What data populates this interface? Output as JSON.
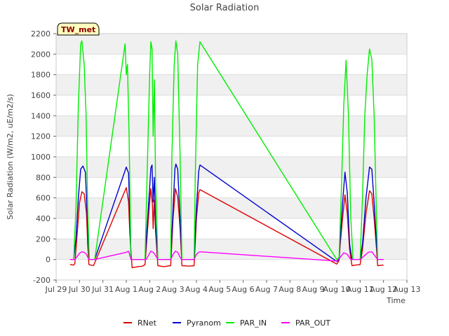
{
  "chart_data": {
    "type": "line",
    "title": "Solar Radiation",
    "xlabel": "Time",
    "ylabel": "Solar Radiation (W/m2, uE/m2/s)",
    "station_label": "TW_met",
    "xlim": [
      0,
      15
    ],
    "ylim": [
      -200,
      2200
    ],
    "y_ticks": [
      -200,
      0,
      200,
      400,
      600,
      800,
      1000,
      1200,
      1400,
      1600,
      1800,
      2000,
      2200
    ],
    "x_ticks": [
      {
        "x": 0,
        "label": "Jul 29"
      },
      {
        "x": 1,
        "label": "Jul 30"
      },
      {
        "x": 2,
        "label": "Jul 31"
      },
      {
        "x": 3,
        "label": "Aug 1"
      },
      {
        "x": 4,
        "label": "Aug 2"
      },
      {
        "x": 5,
        "label": "Aug 3"
      },
      {
        "x": 6,
        "label": "Aug 4"
      },
      {
        "x": 7,
        "label": "Aug 5"
      },
      {
        "x": 8,
        "label": "Aug 6"
      },
      {
        "x": 9,
        "label": "Aug 7"
      },
      {
        "x": 10,
        "label": "Aug 8"
      },
      {
        "x": 11,
        "label": "Aug 9"
      },
      {
        "x": 12,
        "label": "Aug 10"
      },
      {
        "x": 13,
        "label": "Aug 11"
      },
      {
        "x": 14,
        "label": "Aug 12"
      },
      {
        "x": 15,
        "label": "Aug 13"
      }
    ],
    "grid": "horizontal bands",
    "legend_position": "bottom",
    "series": [
      {
        "name": "RNet",
        "color": "#dd0000",
        "points": [
          [
            0.6,
            -50
          ],
          [
            0.75,
            -55
          ],
          [
            0.8,
            -40
          ],
          [
            0.9,
            250
          ],
          [
            1.0,
            550
          ],
          [
            1.1,
            660
          ],
          [
            1.2,
            640
          ],
          [
            1.3,
            450
          ],
          [
            1.35,
            150
          ],
          [
            1.4,
            -50
          ],
          [
            1.6,
            -60
          ],
          [
            3.0,
            700
          ],
          [
            3.1,
            560
          ],
          [
            3.15,
            260
          ],
          [
            3.25,
            -80
          ],
          [
            3.5,
            -70
          ],
          [
            3.7,
            -65
          ],
          [
            3.8,
            -50
          ],
          [
            3.9,
            260
          ],
          [
            4.0,
            560
          ],
          [
            4.05,
            690
          ],
          [
            4.12,
            540
          ],
          [
            4.15,
            300
          ],
          [
            4.2,
            580
          ],
          [
            4.25,
            280
          ],
          [
            4.35,
            -60
          ],
          [
            4.6,
            -70
          ],
          [
            4.9,
            -60
          ],
          [
            5.0,
            400
          ],
          [
            5.1,
            690
          ],
          [
            5.2,
            610
          ],
          [
            5.3,
            300
          ],
          [
            5.38,
            -60
          ],
          [
            5.7,
            -65
          ],
          [
            5.9,
            -60
          ],
          [
            6.0,
            400
          ],
          [
            6.1,
            650
          ],
          [
            6.15,
            680
          ],
          [
            12.0,
            -45
          ],
          [
            12.1,
            -10
          ],
          [
            12.15,
            150
          ],
          [
            12.25,
            400
          ],
          [
            12.35,
            630
          ],
          [
            12.45,
            450
          ],
          [
            12.55,
            100
          ],
          [
            12.65,
            -60
          ],
          [
            12.8,
            -55
          ],
          [
            13.0,
            -50
          ],
          [
            13.1,
            100
          ],
          [
            13.25,
            450
          ],
          [
            13.4,
            670
          ],
          [
            13.5,
            640
          ],
          [
            13.6,
            400
          ],
          [
            13.7,
            100
          ],
          [
            13.75,
            -60
          ],
          [
            14.0,
            -55
          ]
        ]
      },
      {
        "name": "Pyranom",
        "color": "#0000cc",
        "points": [
          [
            0.6,
            0
          ],
          [
            0.75,
            0
          ],
          [
            0.85,
            200
          ],
          [
            0.95,
            600
          ],
          [
            1.05,
            880
          ],
          [
            1.15,
            910
          ],
          [
            1.25,
            850
          ],
          [
            1.3,
            600
          ],
          [
            1.37,
            200
          ],
          [
            1.42,
            0
          ],
          [
            1.65,
            0
          ],
          [
            3.0,
            900
          ],
          [
            3.1,
            840
          ],
          [
            3.15,
            400
          ],
          [
            3.2,
            0
          ],
          [
            3.6,
            0
          ],
          [
            3.8,
            0
          ],
          [
            3.9,
            350
          ],
          [
            4.0,
            700
          ],
          [
            4.05,
            890
          ],
          [
            4.1,
            920
          ],
          [
            4.15,
            560
          ],
          [
            4.2,
            800
          ],
          [
            4.25,
            350
          ],
          [
            4.35,
            0
          ],
          [
            4.9,
            0
          ],
          [
            5.0,
            500
          ],
          [
            5.08,
            880
          ],
          [
            5.12,
            930
          ],
          [
            5.2,
            880
          ],
          [
            5.3,
            400
          ],
          [
            5.38,
            0
          ],
          [
            5.9,
            0
          ],
          [
            6.0,
            500
          ],
          [
            6.1,
            860
          ],
          [
            6.15,
            920
          ],
          [
            12.0,
            -20
          ],
          [
            12.1,
            0
          ],
          [
            12.15,
            200
          ],
          [
            12.25,
            550
          ],
          [
            12.35,
            850
          ],
          [
            12.45,
            650
          ],
          [
            12.55,
            150
          ],
          [
            12.65,
            0
          ],
          [
            13.0,
            0
          ],
          [
            13.1,
            150
          ],
          [
            13.25,
            600
          ],
          [
            13.4,
            900
          ],
          [
            13.5,
            880
          ],
          [
            13.6,
            550
          ],
          [
            13.7,
            150
          ],
          [
            13.75,
            0
          ],
          [
            14.0,
            0
          ]
        ]
      },
      {
        "name": "PAR_IN",
        "color": "#00ee00",
        "points": [
          [
            0.75,
            0
          ],
          [
            0.85,
            500
          ],
          [
            0.95,
            1500
          ],
          [
            1.05,
            2100
          ],
          [
            1.1,
            2130
          ],
          [
            1.2,
            1900
          ],
          [
            1.28,
            1400
          ],
          [
            1.35,
            500
          ],
          [
            1.42,
            0
          ],
          [
            1.65,
            0
          ],
          [
            2.95,
            2100
          ],
          [
            3.0,
            1800
          ],
          [
            3.05,
            1900
          ],
          [
            3.12,
            1200
          ],
          [
            3.2,
            0
          ],
          [
            3.6,
            0
          ],
          [
            3.8,
            0
          ],
          [
            3.9,
            900
          ],
          [
            4.0,
            1800
          ],
          [
            4.05,
            2120
          ],
          [
            4.1,
            2050
          ],
          [
            4.15,
            1200
          ],
          [
            4.2,
            1750
          ],
          [
            4.25,
            800
          ],
          [
            4.35,
            0
          ],
          [
            4.9,
            0
          ],
          [
            4.95,
            1000
          ],
          [
            5.05,
            1900
          ],
          [
            5.12,
            2130
          ],
          [
            5.2,
            2000
          ],
          [
            5.3,
            1000
          ],
          [
            5.38,
            0
          ],
          [
            5.9,
            0
          ],
          [
            5.95,
            800
          ],
          [
            6.05,
            1900
          ],
          [
            6.15,
            2120
          ],
          [
            12.0,
            0
          ],
          [
            12.1,
            20
          ],
          [
            12.2,
            700
          ],
          [
            12.3,
            1500
          ],
          [
            12.4,
            1940
          ],
          [
            12.5,
            1400
          ],
          [
            12.6,
            400
          ],
          [
            12.7,
            0
          ],
          [
            13.0,
            0
          ],
          [
            13.1,
            600
          ],
          [
            13.2,
            1400
          ],
          [
            13.3,
            1800
          ],
          [
            13.4,
            2050
          ],
          [
            13.5,
            1950
          ],
          [
            13.6,
            1400
          ],
          [
            13.7,
            400
          ],
          [
            13.75,
            0
          ],
          [
            14.0,
            0
          ]
        ]
      },
      {
        "name": "PAR_OUT",
        "color": "#ff00ff",
        "points": [
          [
            0.6,
            0
          ],
          [
            0.8,
            0
          ],
          [
            0.9,
            30
          ],
          [
            1.0,
            60
          ],
          [
            1.1,
            75
          ],
          [
            1.2,
            70
          ],
          [
            1.3,
            50
          ],
          [
            1.4,
            0
          ],
          [
            1.65,
            0
          ],
          [
            3.0,
            70
          ],
          [
            3.1,
            80
          ],
          [
            3.2,
            0
          ],
          [
            3.6,
            0
          ],
          [
            3.85,
            0
          ],
          [
            3.95,
            40
          ],
          [
            4.05,
            80
          ],
          [
            4.15,
            70
          ],
          [
            4.25,
            40
          ],
          [
            4.35,
            0
          ],
          [
            4.9,
            0
          ],
          [
            5.0,
            50
          ],
          [
            5.1,
            80
          ],
          [
            5.2,
            70
          ],
          [
            5.3,
            20
          ],
          [
            5.38,
            0
          ],
          [
            5.9,
            0
          ],
          [
            6.0,
            50
          ],
          [
            6.1,
            70
          ],
          [
            6.15,
            75
          ],
          [
            12.0,
            -15
          ],
          [
            12.15,
            20
          ],
          [
            12.3,
            65
          ],
          [
            12.45,
            50
          ],
          [
            12.6,
            0
          ],
          [
            13.0,
            0
          ],
          [
            13.15,
            30
          ],
          [
            13.35,
            70
          ],
          [
            13.5,
            75
          ],
          [
            13.65,
            30
          ],
          [
            13.75,
            0
          ],
          [
            14.0,
            0
          ]
        ]
      }
    ]
  }
}
